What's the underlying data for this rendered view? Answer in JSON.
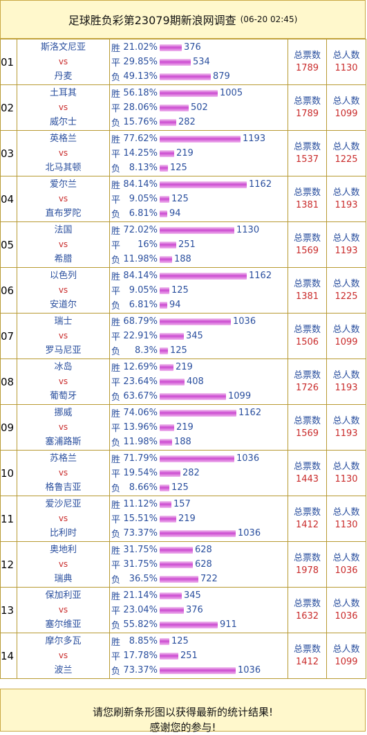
{
  "header": {
    "title": "足球胜负彩第23079期新浪网调查",
    "timestamp": "(06-20 02:45)"
  },
  "labels": {
    "win": "胜",
    "draw": "平",
    "lose": "负",
    "vs": "vs",
    "tickets": "总票数",
    "people": "总人数"
  },
  "matches": [
    {
      "no": "01",
      "home": "斯洛文尼亚",
      "away": "丹麦",
      "win": {
        "pct": "21.02%",
        "count": "376",
        "level": 0.21
      },
      "draw": {
        "pct": "29.85%",
        "count": "534",
        "level": 0.3
      },
      "lose": {
        "pct": "49.13%",
        "count": "879",
        "level": 0.49
      },
      "tickets": "1789",
      "people": "1130"
    },
    {
      "no": "02",
      "home": "土耳其",
      "away": "威尔士",
      "win": {
        "pct": "56.18%",
        "count": "1005",
        "level": 0.56
      },
      "draw": {
        "pct": "28.06%",
        "count": "502",
        "level": 0.28
      },
      "lose": {
        "pct": "15.76%",
        "count": "282",
        "level": 0.16
      },
      "tickets": "1789",
      "people": "1099"
    },
    {
      "no": "03",
      "home": "英格兰",
      "away": "北马其顿",
      "win": {
        "pct": "77.62%",
        "count": "1193",
        "level": 0.78
      },
      "draw": {
        "pct": "14.25%",
        "count": "219",
        "level": 0.14
      },
      "lose": {
        "pct": "8.13%",
        "count": "125",
        "level": 0.08
      },
      "tickets": "1537",
      "people": "1225"
    },
    {
      "no": "04",
      "home": "爱尔兰",
      "away": "直布罗陀",
      "win": {
        "pct": "84.14%",
        "count": "1162",
        "level": 0.84
      },
      "draw": {
        "pct": "9.05%",
        "count": "125",
        "level": 0.09
      },
      "lose": {
        "pct": "6.81%",
        "count": "94",
        "level": 0.07
      },
      "tickets": "1381",
      "people": "1193"
    },
    {
      "no": "05",
      "home": "法国",
      "away": "希腊",
      "win": {
        "pct": "72.02%",
        "count": "1130",
        "level": 0.72
      },
      "draw": {
        "pct": "16%",
        "count": "251",
        "level": 0.16
      },
      "lose": {
        "pct": "11.98%",
        "count": "188",
        "level": 0.12
      },
      "tickets": "1569",
      "people": "1193"
    },
    {
      "no": "06",
      "home": "以色列",
      "away": "安道尔",
      "win": {
        "pct": "84.14%",
        "count": "1162",
        "level": 0.84
      },
      "draw": {
        "pct": "9.05%",
        "count": "125",
        "level": 0.09
      },
      "lose": {
        "pct": "6.81%",
        "count": "94",
        "level": 0.07
      },
      "tickets": "1381",
      "people": "1225"
    },
    {
      "no": "07",
      "home": "瑞士",
      "away": "罗马尼亚",
      "win": {
        "pct": "68.79%",
        "count": "1036",
        "level": 0.69
      },
      "draw": {
        "pct": "22.91%",
        "count": "345",
        "level": 0.23
      },
      "lose": {
        "pct": "8.3%",
        "count": "125",
        "level": 0.08
      },
      "tickets": "1506",
      "people": "1099"
    },
    {
      "no": "08",
      "home": "冰岛",
      "away": "葡萄牙",
      "win": {
        "pct": "12.69%",
        "count": "219",
        "level": 0.13
      },
      "draw": {
        "pct": "23.64%",
        "count": "408",
        "level": 0.24
      },
      "lose": {
        "pct": "63.67%",
        "count": "1099",
        "level": 0.64
      },
      "tickets": "1726",
      "people": "1193"
    },
    {
      "no": "09",
      "home": "挪威",
      "away": "塞浦路斯",
      "win": {
        "pct": "74.06%",
        "count": "1162",
        "level": 0.74
      },
      "draw": {
        "pct": "13.96%",
        "count": "219",
        "level": 0.14
      },
      "lose": {
        "pct": "11.98%",
        "count": "188",
        "level": 0.12
      },
      "tickets": "1569",
      "people": "1193"
    },
    {
      "no": "10",
      "home": "苏格兰",
      "away": "格鲁吉亚",
      "win": {
        "pct": "71.79%",
        "count": "1036",
        "level": 0.72
      },
      "draw": {
        "pct": "19.54%",
        "count": "282",
        "level": 0.2
      },
      "lose": {
        "pct": "8.66%",
        "count": "125",
        "level": 0.09
      },
      "tickets": "1443",
      "people": "1130"
    },
    {
      "no": "11",
      "home": "爱沙尼亚",
      "away": "比利时",
      "win": {
        "pct": "11.12%",
        "count": "157",
        "level": 0.11
      },
      "draw": {
        "pct": "15.51%",
        "count": "219",
        "level": 0.16
      },
      "lose": {
        "pct": "73.37%",
        "count": "1036",
        "level": 0.73
      },
      "tickets": "1412",
      "people": "1130"
    },
    {
      "no": "12",
      "home": "奥地利",
      "away": "瑞典",
      "win": {
        "pct": "31.75%",
        "count": "628",
        "level": 0.32
      },
      "draw": {
        "pct": "31.75%",
        "count": "628",
        "level": 0.32
      },
      "lose": {
        "pct": "36.5%",
        "count": "722",
        "level": 0.37
      },
      "tickets": "1978",
      "people": "1036"
    },
    {
      "no": "13",
      "home": "保加利亚",
      "away": "塞尔维亚",
      "win": {
        "pct": "21.14%",
        "count": "345",
        "level": 0.21
      },
      "draw": {
        "pct": "23.04%",
        "count": "376",
        "level": 0.23
      },
      "lose": {
        "pct": "55.82%",
        "count": "911",
        "level": 0.56
      },
      "tickets": "1632",
      "people": "1036"
    },
    {
      "no": "14",
      "home": "摩尔多瓦",
      "away": "波兰",
      "win": {
        "pct": "8.85%",
        "count": "125",
        "level": 0.09
      },
      "draw": {
        "pct": "17.78%",
        "count": "251",
        "level": 0.18
      },
      "lose": {
        "pct": "73.37%",
        "count": "1036",
        "level": 0.73
      },
      "tickets": "1412",
      "people": "1099"
    }
  ],
  "footer": {
    "line1": "请您刷新条形图以获得最新的统计结果!",
    "line2": "感谢您的参与!"
  }
}
